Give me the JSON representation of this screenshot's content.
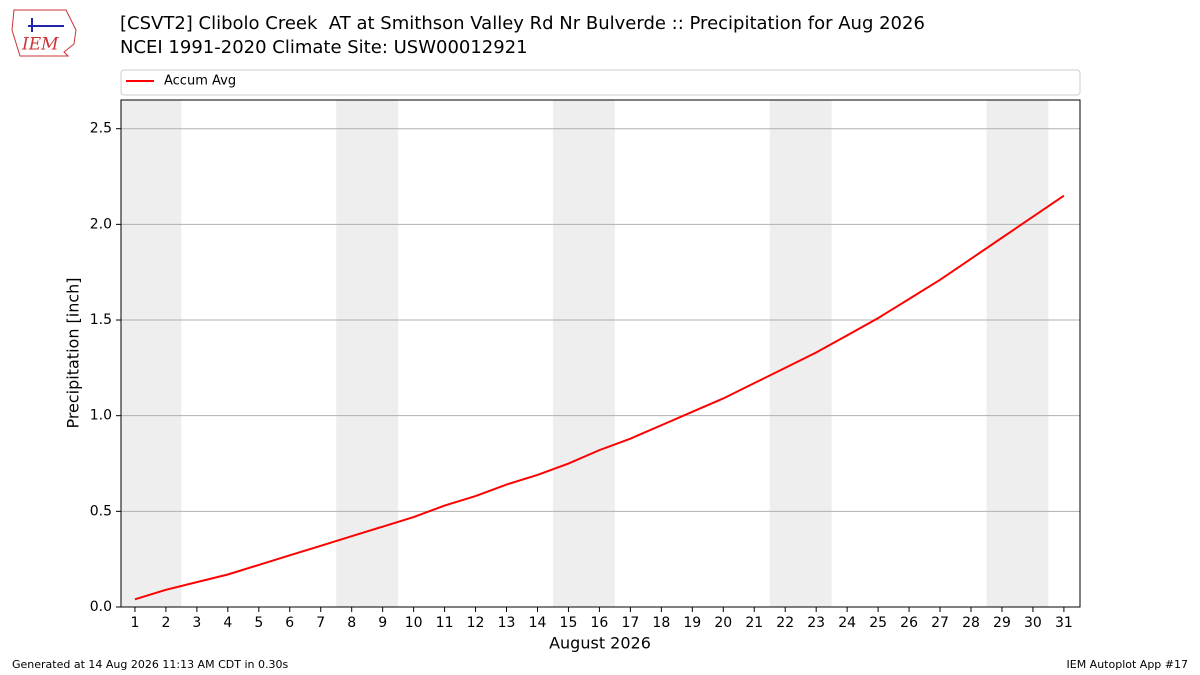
{
  "chart_data": {
    "type": "line",
    "title": "[CSVT2] Clibolo Creek  AT at Smithson Valley Rd Nr Bulverde :: Precipitation for Aug 2026",
    "subtitle": "NCEI 1991-2020 Climate Site: USW00012921",
    "logo_text": "IEM",
    "x_label": "August 2026",
    "y_label": "Precipitation [inch]",
    "x": [
      1,
      2,
      3,
      4,
      5,
      6,
      7,
      8,
      9,
      10,
      11,
      12,
      13,
      14,
      15,
      16,
      17,
      18,
      19,
      20,
      21,
      22,
      23,
      24,
      25,
      26,
      27,
      28,
      29,
      30,
      31
    ],
    "series": [
      {
        "name": "Accum Avg",
        "color": "#ff0000",
        "values": [
          0.04,
          0.09,
          0.13,
          0.17,
          0.22,
          0.27,
          0.32,
          0.37,
          0.42,
          0.47,
          0.53,
          0.58,
          0.64,
          0.69,
          0.75,
          0.82,
          0.88,
          0.95,
          1.02,
          1.09,
          1.17,
          1.25,
          1.33,
          1.42,
          1.51,
          1.61,
          1.71,
          1.82,
          1.93,
          2.04,
          2.15
        ]
      }
    ],
    "shaded_days": [
      1,
      2,
      8,
      9,
      15,
      16,
      22,
      23,
      29,
      30
    ],
    "shade_color": "#eeeeee",
    "xlim": [
      0.55,
      31.52
    ],
    "ylim": [
      0,
      2.65
    ],
    "xticks": [
      1,
      2,
      3,
      4,
      5,
      6,
      7,
      8,
      9,
      10,
      11,
      12,
      13,
      14,
      15,
      16,
      17,
      18,
      19,
      20,
      21,
      22,
      23,
      24,
      25,
      26,
      27,
      28,
      29,
      30,
      31
    ],
    "yticks": [
      {
        "value": 0,
        "label": "0.0"
      },
      0.5,
      {
        "value": 1,
        "label": "1.0"
      },
      1.5,
      {
        "value": 2,
        "label": "2.0"
      },
      2.5
    ],
    "grid": true,
    "legend": "top",
    "footer_left": "Generated at 14 Aug 2026 11:13 AM CDT in 0.30s",
    "footer_right": "IEM Autoplot App #17"
  }
}
